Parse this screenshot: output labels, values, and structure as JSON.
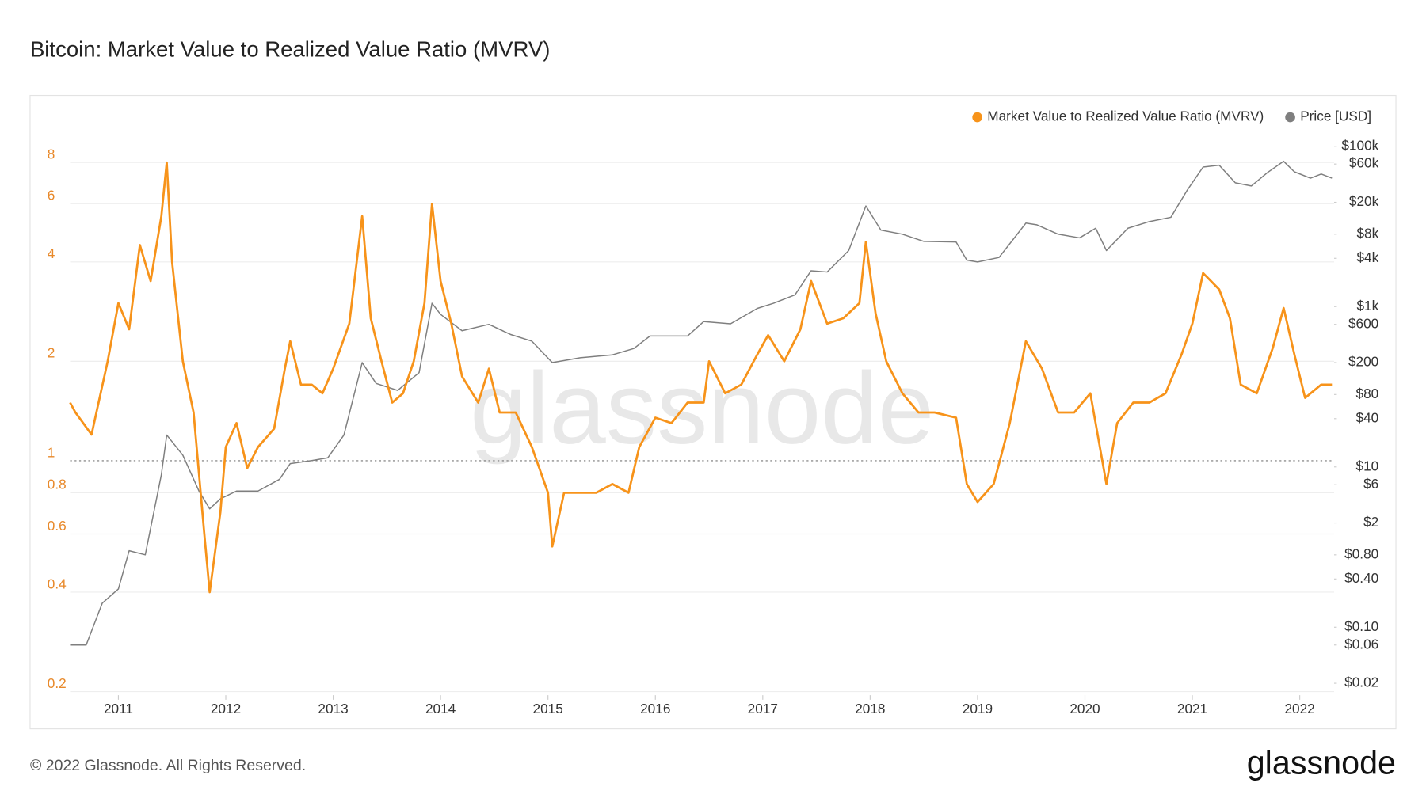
{
  "chart_data": {
    "type": "line",
    "title": "Bitcoin: Market Value to Realized Value Ratio (MVRV)",
    "watermark": "glassnode",
    "footer": "© 2022 Glassnode. All Rights Reserved.",
    "brand": "glassnode",
    "xlim": [
      2010.55,
      2022.32
    ],
    "xticks": [
      2011,
      2012,
      2013,
      2014,
      2015,
      2016,
      2017,
      2018,
      2019,
      2020,
      2021,
      2022
    ],
    "ylim": [
      0.195,
      9.6
    ],
    "ylog": true,
    "yticks": [
      0.2,
      0.4,
      0.6,
      0.8,
      1,
      2,
      4,
      6,
      8
    ],
    "reference_line": 1,
    "y2lim": [
      0.0142,
      133000
    ],
    "y2log": true,
    "y2ticks": [
      {
        "value": 100000,
        "label": "$100k"
      },
      {
        "value": 60000,
        "label": "$60k"
      },
      {
        "value": 20000,
        "label": "$20k"
      },
      {
        "value": 8000,
        "label": "$8k"
      },
      {
        "value": 4000,
        "label": "$4k"
      },
      {
        "value": 1000,
        "label": "$1k"
      },
      {
        "value": 600,
        "label": "$600"
      },
      {
        "value": 200,
        "label": "$200"
      },
      {
        "value": 80,
        "label": "$80"
      },
      {
        "value": 40,
        "label": "$40"
      },
      {
        "value": 10,
        "label": "$10"
      },
      {
        "value": 6,
        "label": "$6"
      },
      {
        "value": 2,
        "label": "$2"
      },
      {
        "value": 0.8,
        "label": "$0.80"
      },
      {
        "value": 0.4,
        "label": "$0.40"
      },
      {
        "value": 0.1,
        "label": "$0.10"
      },
      {
        "value": 0.06,
        "label": "$0.06"
      },
      {
        "value": 0.02,
        "label": "$0.02"
      }
    ],
    "legend": "top-right",
    "series": [
      {
        "name": "Market Value to Realized Value Ratio (MVRV)",
        "color": "#f7931a",
        "x": [
          2010.55,
          2010.6,
          2010.75,
          2010.9,
          2011.0,
          2011.1,
          2011.2,
          2011.3,
          2011.4,
          2011.45,
          2011.5,
          2011.6,
          2011.7,
          2011.8,
          2011.85,
          2011.95,
          2012.0,
          2012.1,
          2012.2,
          2012.3,
          2012.45,
          2012.55,
          2012.6,
          2012.7,
          2012.8,
          2012.9,
          2013.0,
          2013.15,
          2013.27,
          2013.35,
          2013.45,
          2013.55,
          2013.65,
          2013.75,
          2013.85,
          2013.92,
          2014.0,
          2014.1,
          2014.2,
          2014.35,
          2014.45,
          2014.55,
          2014.7,
          2014.85,
          2015.0,
          2015.04,
          2015.15,
          2015.3,
          2015.45,
          2015.6,
          2015.75,
          2015.85,
          2016.0,
          2016.15,
          2016.3,
          2016.45,
          2016.5,
          2016.65,
          2016.8,
          2016.95,
          2017.05,
          2017.2,
          2017.35,
          2017.45,
          2017.6,
          2017.75,
          2017.9,
          2017.96,
          2018.05,
          2018.15,
          2018.3,
          2018.45,
          2018.6,
          2018.8,
          2018.9,
          2019.0,
          2019.15,
          2019.3,
          2019.45,
          2019.6,
          2019.75,
          2019.9,
          2020.05,
          2020.2,
          2020.3,
          2020.45,
          2020.6,
          2020.75,
          2020.9,
          2021.0,
          2021.1,
          2021.25,
          2021.35,
          2021.45,
          2021.6,
          2021.75,
          2021.85,
          2021.95,
          2022.05,
          2022.2,
          2022.3
        ],
        "values": [
          1.5,
          1.4,
          1.2,
          2.0,
          3.0,
          2.5,
          4.5,
          3.5,
          5.5,
          8.0,
          4.0,
          2.0,
          1.4,
          0.6,
          0.4,
          0.7,
          1.1,
          1.3,
          0.95,
          1.1,
          1.25,
          1.9,
          2.3,
          1.7,
          1.7,
          1.6,
          1.9,
          2.6,
          5.5,
          2.7,
          2.0,
          1.5,
          1.6,
          2.0,
          3.0,
          6.0,
          3.5,
          2.6,
          1.8,
          1.5,
          1.9,
          1.4,
          1.4,
          1.1,
          0.8,
          0.55,
          0.8,
          0.8,
          0.8,
          0.85,
          0.8,
          1.1,
          1.35,
          1.3,
          1.5,
          1.5,
          2.0,
          1.6,
          1.7,
          2.1,
          2.4,
          2.0,
          2.5,
          3.5,
          2.6,
          2.7,
          3.0,
          4.6,
          2.8,
          2.0,
          1.6,
          1.4,
          1.4,
          1.35,
          0.85,
          0.75,
          0.85,
          1.3,
          2.3,
          1.9,
          1.4,
          1.4,
          1.6,
          0.85,
          1.3,
          1.5,
          1.5,
          1.6,
          2.1,
          2.6,
          3.7,
          3.3,
          2.7,
          1.7,
          1.6,
          2.2,
          2.9,
          2.1,
          1.55,
          1.7,
          1.7
        ]
      },
      {
        "name": "Price [USD]",
        "color": "#7f7f7f",
        "axis": "y2",
        "x": [
          2010.55,
          2010.7,
          2010.85,
          2011.0,
          2011.1,
          2011.25,
          2011.4,
          2011.45,
          2011.6,
          2011.75,
          2011.85,
          2011.95,
          2012.1,
          2012.3,
          2012.5,
          2012.6,
          2012.8,
          2012.95,
          2013.1,
          2013.27,
          2013.4,
          2013.6,
          2013.8,
          2013.92,
          2014.0,
          2014.2,
          2014.45,
          2014.65,
          2014.85,
          2015.04,
          2015.3,
          2015.6,
          2015.8,
          2015.95,
          2016.3,
          2016.45,
          2016.7,
          2016.95,
          2017.1,
          2017.3,
          2017.45,
          2017.6,
          2017.8,
          2017.96,
          2018.1,
          2018.3,
          2018.5,
          2018.8,
          2018.9,
          2019.0,
          2019.2,
          2019.45,
          2019.55,
          2019.75,
          2019.95,
          2020.1,
          2020.2,
          2020.4,
          2020.6,
          2020.8,
          2020.95,
          2021.1,
          2021.25,
          2021.4,
          2021.55,
          2021.7,
          2021.85,
          2021.95,
          2022.1,
          2022.2,
          2022.3
        ],
        "values": [
          0.06,
          0.06,
          0.2,
          0.3,
          0.9,
          0.8,
          8,
          25,
          14,
          5,
          3,
          4,
          5,
          5,
          7,
          11,
          12,
          13,
          25,
          200,
          110,
          90,
          150,
          1100,
          800,
          500,
          600,
          450,
          370,
          200,
          230,
          250,
          300,
          430,
          430,
          650,
          610,
          950,
          1100,
          1400,
          2800,
          2700,
          5000,
          18000,
          9000,
          8000,
          6500,
          6400,
          3800,
          3600,
          4100,
          11000,
          10500,
          8000,
          7200,
          9500,
          5000,
          9500,
          11500,
          13000,
          28000,
          55000,
          58000,
          35000,
          32000,
          47000,
          65000,
          48000,
          40000,
          45000,
          40000
        ]
      }
    ]
  }
}
